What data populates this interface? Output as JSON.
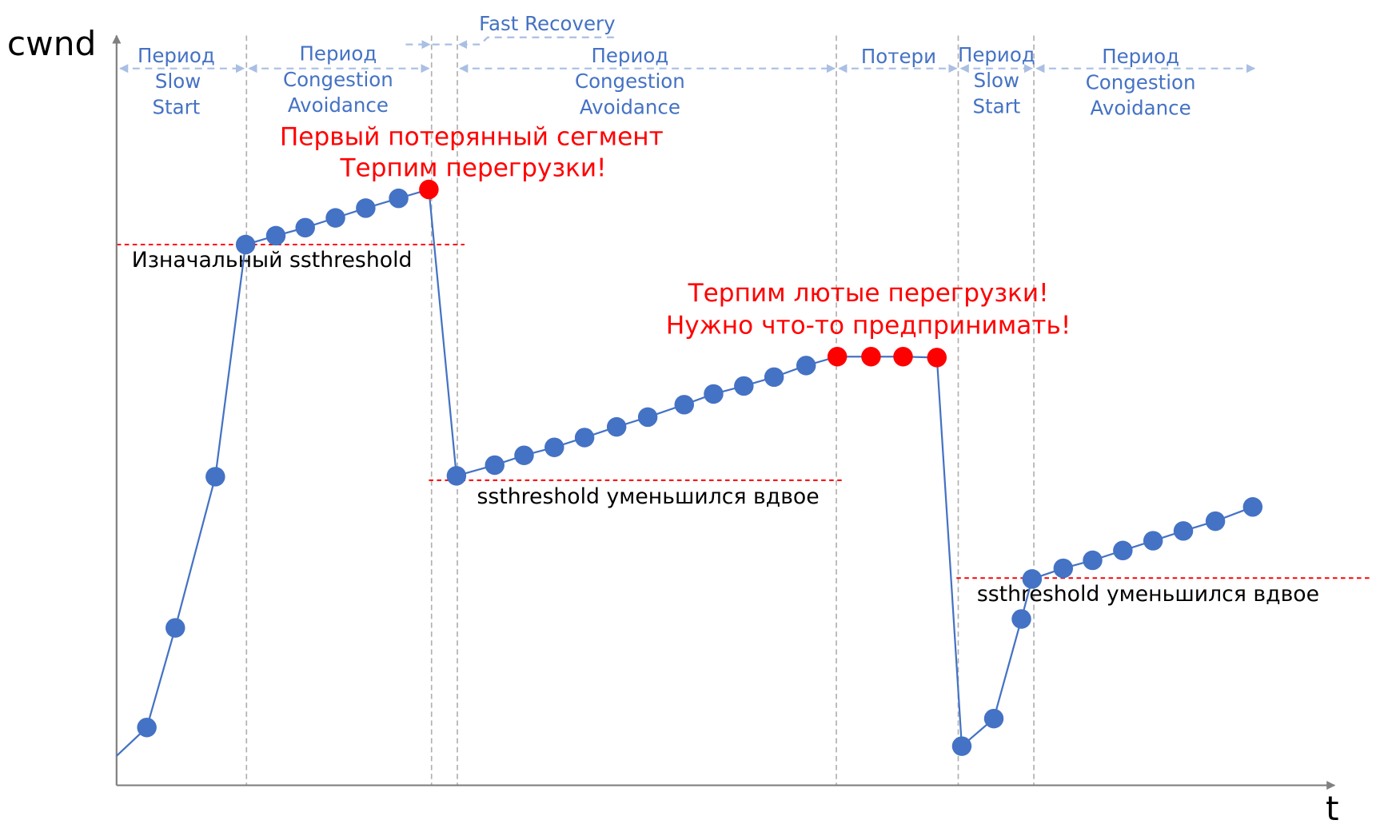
{
  "axes": {
    "y_label": "cwnd",
    "x_label": "t"
  },
  "phases": [
    {
      "lines": [
        "Период",
        "Slow",
        "Start"
      ]
    },
    {
      "lines": [
        "Период",
        "Congestion",
        "Avoidance"
      ]
    },
    {
      "lines": [
        "Fast Recovery"
      ]
    },
    {
      "lines": [
        "Период",
        "Congestion",
        "Avoidance"
      ]
    },
    {
      "lines": [
        "Потери"
      ]
    },
    {
      "lines": [
        "Период",
        "Slow",
        "Start"
      ]
    },
    {
      "lines": [
        "Период",
        "Congestion",
        "Avoidance"
      ]
    }
  ],
  "annotations": {
    "first_loss": [
      "Первый потерянный сегмент",
      "Терпим перегрузки!"
    ],
    "heavy_loss": [
      "Терпим лютые перегрузки!",
      "Нужно что-то предпринимать!"
    ],
    "threshold_initial": "Изначальный ssthreshold",
    "threshold_halved_1": "ssthreshold уменьшился вдвое",
    "threshold_halved_2": "ssthreshold уменьшился вдвое"
  },
  "colors": {
    "normal": "#4472c4",
    "loss": "#ff0000",
    "threshold": "#ff0000",
    "phase": "#4472c4"
  },
  "chart_data": {
    "type": "line",
    "units": "arbitrary",
    "line_start": [
      0,
      3.3
    ],
    "points": [
      [
        3.4,
        6.5,
        "normal"
      ],
      [
        6.6,
        17.7,
        "normal"
      ],
      [
        11.1,
        34.7,
        "normal"
      ],
      [
        14.5,
        60.8,
        "normal"
      ],
      [
        17.9,
        61.8,
        "normal"
      ],
      [
        21.2,
        62.7,
        "normal"
      ],
      [
        24.6,
        63.8,
        "normal"
      ],
      [
        28.0,
        64.9,
        "normal"
      ],
      [
        31.7,
        66.0,
        "normal"
      ],
      [
        35.1,
        67.0,
        "loss"
      ],
      [
        38.2,
        34.8,
        "normal"
      ],
      [
        42.5,
        36.0,
        "normal"
      ],
      [
        45.8,
        37.1,
        "normal"
      ],
      [
        49.2,
        38.0,
        "normal"
      ],
      [
        52.6,
        39.1,
        "normal"
      ],
      [
        56.2,
        40.3,
        "normal"
      ],
      [
        59.7,
        41.4,
        "normal"
      ],
      [
        63.8,
        42.8,
        "normal"
      ],
      [
        67.1,
        44.0,
        "normal"
      ],
      [
        70.5,
        44.9,
        "normal"
      ],
      [
        73.9,
        45.9,
        "normal"
      ],
      [
        77.5,
        47.2,
        "normal"
      ],
      [
        81.0,
        48.2,
        "loss"
      ],
      [
        84.8,
        48.2,
        "loss"
      ],
      [
        88.4,
        48.2,
        "loss"
      ],
      [
        92.2,
        48.1,
        "loss"
      ],
      [
        95.0,
        4.4,
        "normal"
      ],
      [
        98.6,
        7.5,
        "normal"
      ],
      [
        101.7,
        18.7,
        "normal"
      ],
      [
        102.9,
        23.2,
        "normal"
      ],
      [
        106.4,
        24.4,
        "normal"
      ],
      [
        109.7,
        25.3,
        "normal"
      ],
      [
        113.1,
        26.4,
        "normal"
      ],
      [
        116.5,
        27.5,
        "normal"
      ],
      [
        119.9,
        28.6,
        "normal"
      ],
      [
        123.5,
        29.7,
        "normal"
      ],
      [
        127.7,
        31.3,
        "normal"
      ]
    ],
    "thresholds": [
      {
        "value": 60.8,
        "from": 0,
        "to": 39.1
      },
      {
        "value": 34.3,
        "from": 35.1,
        "to": 81.7
      },
      {
        "value": 23.3,
        "from": 94.4,
        "to": 141.2
      }
    ],
    "phase_boundaries": [
      14.6,
      35.4,
      38.3,
      80.9,
      94.6,
      103.1
    ]
  }
}
